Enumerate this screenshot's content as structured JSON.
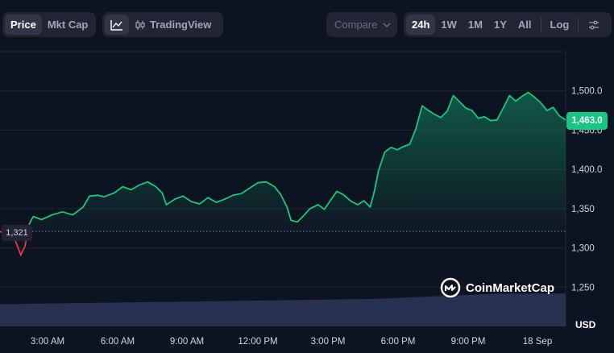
{
  "toolbar": {
    "type_tabs": [
      {
        "label": "Price",
        "active": true
      },
      {
        "label": "Mkt Cap",
        "active": false
      }
    ],
    "view": {
      "line_icon": "line-chart-icon",
      "tradingview_icon": "candlestick-icon",
      "tradingview_label": "TradingView"
    },
    "compare_label": "Compare",
    "ranges": [
      {
        "label": "24h",
        "active": true
      },
      {
        "label": "1W",
        "active": false
      },
      {
        "label": "1M",
        "active": false
      },
      {
        "label": "1Y",
        "active": false
      },
      {
        "label": "All",
        "active": false
      }
    ],
    "log_label": "Log",
    "settings_icon": "sliders-icon"
  },
  "chart_data": {
    "type": "area",
    "currency": "USD",
    "current_price_label": "1,463.0",
    "open_price_label": "1,321",
    "open_price": 1321,
    "ylim": [
      1200,
      1550
    ],
    "y_ticks": [
      {
        "value": 1250,
        "label": "1,250"
      },
      {
        "value": 1300,
        "label": "1,300"
      },
      {
        "value": 1350,
        "label": "1,350"
      },
      {
        "value": 1400,
        "label": "1,400.0"
      },
      {
        "value": 1450,
        "label": "1,450.0"
      },
      {
        "value": 1500,
        "label": "1,500.0"
      }
    ],
    "x_ticks": [
      "3:00 AM",
      "6:00 AM",
      "9:00 AM",
      "12:00 PM",
      "3:00 PM",
      "6:00 PM",
      "9:00 PM",
      "18 Sep"
    ],
    "colors": {
      "up": "#16c784",
      "down": "#ea3943",
      "volume": "#2a3556",
      "background": "#0d1421"
    },
    "price_series": [
      [
        0.0,
        1321
      ],
      [
        0.7,
        1312
      ],
      [
        1.0,
        1291
      ],
      [
        1.2,
        1302
      ],
      [
        1.4,
        1330
      ],
      [
        1.6,
        1340
      ],
      [
        2.0,
        1336
      ],
      [
        2.5,
        1342
      ],
      [
        3.0,
        1346
      ],
      [
        3.5,
        1342
      ],
      [
        4.0,
        1352
      ],
      [
        4.3,
        1366
      ],
      [
        4.7,
        1367
      ],
      [
        5.0,
        1365
      ],
      [
        5.5,
        1370
      ],
      [
        5.9,
        1378
      ],
      [
        6.3,
        1374
      ],
      [
        6.7,
        1380
      ],
      [
        7.1,
        1384
      ],
      [
        7.5,
        1378
      ],
      [
        7.8,
        1370
      ],
      [
        8.0,
        1355
      ],
      [
        8.4,
        1362
      ],
      [
        8.8,
        1366
      ],
      [
        9.2,
        1359
      ],
      [
        9.6,
        1356
      ],
      [
        10.0,
        1364
      ],
      [
        10.4,
        1358
      ],
      [
        10.8,
        1362
      ],
      [
        11.2,
        1367
      ],
      [
        11.6,
        1369
      ],
      [
        12.0,
        1376
      ],
      [
        12.4,
        1383
      ],
      [
        12.8,
        1384
      ],
      [
        13.2,
        1378
      ],
      [
        13.5,
        1368
      ],
      [
        13.8,
        1352
      ],
      [
        14.0,
        1335
      ],
      [
        14.3,
        1333
      ],
      [
        14.6,
        1341
      ],
      [
        14.9,
        1350
      ],
      [
        15.3,
        1355
      ],
      [
        15.6,
        1349
      ],
      [
        15.9,
        1361
      ],
      [
        16.2,
        1372
      ],
      [
        16.5,
        1368
      ],
      [
        16.9,
        1359
      ],
      [
        17.2,
        1355
      ],
      [
        17.5,
        1360
      ],
      [
        17.8,
        1352
      ],
      [
        18.0,
        1372
      ],
      [
        18.2,
        1398
      ],
      [
        18.5,
        1422
      ],
      [
        18.8,
        1428
      ],
      [
        19.1,
        1425
      ],
      [
        19.4,
        1429
      ],
      [
        19.7,
        1432
      ],
      [
        20.0,
        1452
      ],
      [
        20.3,
        1481
      ],
      [
        20.6,
        1475
      ],
      [
        20.9,
        1470
      ],
      [
        21.2,
        1466
      ],
      [
        21.5,
        1474
      ],
      [
        21.8,
        1494
      ],
      [
        22.1,
        1486
      ],
      [
        22.4,
        1478
      ],
      [
        22.7,
        1475
      ],
      [
        23.0,
        1465
      ],
      [
        23.3,
        1467
      ],
      [
        23.6,
        1462
      ],
      [
        23.9,
        1463
      ],
      [
        24.2,
        1478
      ],
      [
        24.5,
        1494
      ],
      [
        24.8,
        1487
      ],
      [
        25.1,
        1493
      ],
      [
        25.4,
        1498
      ],
      [
        25.7,
        1492
      ],
      [
        26.0,
        1485
      ],
      [
        26.3,
        1475
      ],
      [
        26.6,
        1479
      ],
      [
        26.9,
        1468
      ],
      [
        27.2,
        1463
      ]
    ],
    "volume_series": [
      [
        0,
        0.25
      ],
      [
        3,
        0.26
      ],
      [
        6,
        0.27
      ],
      [
        9,
        0.28
      ],
      [
        12,
        0.29
      ],
      [
        15,
        0.3
      ],
      [
        18,
        0.31
      ],
      [
        21,
        0.34
      ],
      [
        24,
        0.37
      ],
      [
        27.2,
        0.37
      ]
    ]
  },
  "watermark": {
    "icon": "coinmarketcap-logo-icon",
    "label": "CoinMarketCap"
  }
}
